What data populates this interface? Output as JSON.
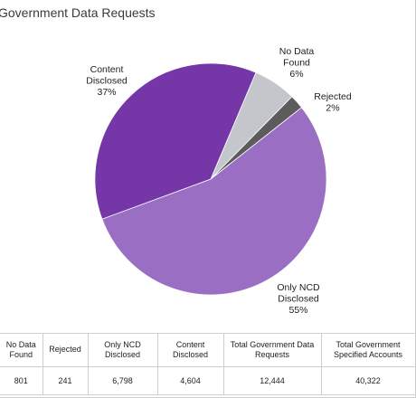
{
  "chart_data": {
    "type": "pie",
    "title": "Government Data Requests",
    "slices": [
      {
        "label_lines": [
          "No Data",
          "Found",
          "6%"
        ],
        "value": 6,
        "color": "#c4c6cc"
      },
      {
        "label_lines": [
          "Rejected",
          "2%"
        ],
        "value": 2,
        "color": "#5c5c5c"
      },
      {
        "label_lines": [
          "Only NCD",
          "Disclosed",
          "55%"
        ],
        "value": 55,
        "color": "#9a6fc3"
      },
      {
        "label_lines": [
          "Content",
          "Disclosed",
          "37%"
        ],
        "value": 37,
        "color": "#7536a8"
      }
    ]
  },
  "table": {
    "headers": [
      "No Data Found",
      "Rejected",
      "Only NCD Disclosed",
      "Content Disclosed",
      "Total Government Data Requests",
      "Total Government Specified Accounts"
    ],
    "values": [
      "801",
      "241",
      "6,798",
      "4,604",
      "12,444",
      "40,322"
    ]
  }
}
